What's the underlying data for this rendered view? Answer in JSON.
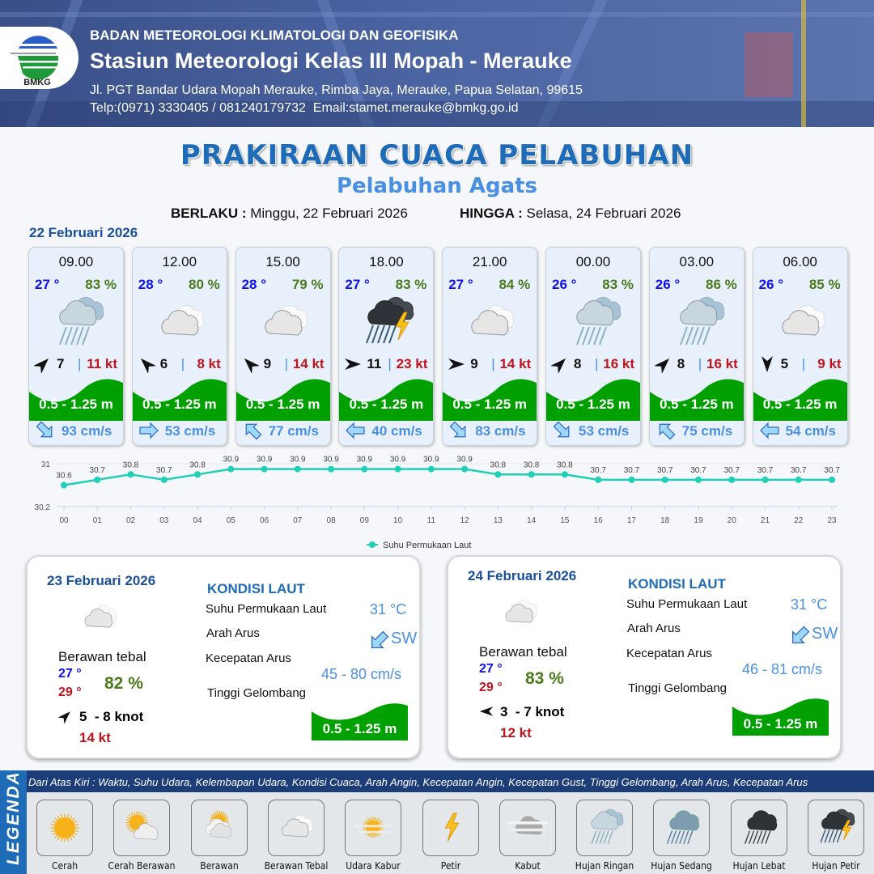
{
  "header": {
    "agency": "BADAN METEOROLOGI KLIMATOLOGI DAN GEOFISIKA",
    "station": "Stasiun Meteorologi Kelas III Mopah - Merauke",
    "address": "Jl. PGT Bandar Udara Mopah Merauke, Rimba Jaya, Merauke, Papua Selatan, 99615",
    "contact": "Telp:(0971) 3330405 / 081240179732  Email:stamet.merauke@bmkg.go.id",
    "logo_text": "BMKG"
  },
  "title": "PRAKIRAAN CUACA PELABUHAN",
  "subtitle": "Pelabuhan Agats",
  "validity": {
    "from_label": "BERLAKU :",
    "from": "Minggu, 22 Februari 2026",
    "to_label": "HINGGA :",
    "to": "Selasa, 24 Februari 2026"
  },
  "day1": {
    "date": "22 Februari 2026",
    "forecasts": [
      {
        "time": "09.00",
        "temp": "27 °",
        "hum": "83 %",
        "weather": "hujan-ringan",
        "wind_dir_deg": 45,
        "wind": "7",
        "gust": "11 kt",
        "wave": "0.5 - 1.25 m",
        "current_dir_deg": 135,
        "current": "93 cm/s"
      },
      {
        "time": "12.00",
        "temp": "28 °",
        "hum": "80 %",
        "weather": "berawan-tebal",
        "wind_dir_deg": 315,
        "wind": "6",
        "gust": "8 kt",
        "wave": "0.5 - 1.25 m",
        "current_dir_deg": 90,
        "current": "53 cm/s"
      },
      {
        "time": "15.00",
        "temp": "28 °",
        "hum": "79 %",
        "weather": "berawan-tebal",
        "wind_dir_deg": 315,
        "wind": "9",
        "gust": "14 kt",
        "wave": "0.5 - 1.25 m",
        "current_dir_deg": 315,
        "current": "77 cm/s"
      },
      {
        "time": "18.00",
        "temp": "27 °",
        "hum": "83 %",
        "weather": "hujan-petir",
        "wind_dir_deg": 90,
        "wind": "11",
        "gust": "23 kt",
        "wave": "0.5 - 1.25 m",
        "current_dir_deg": 270,
        "current": "40 cm/s"
      },
      {
        "time": "21.00",
        "temp": "27 °",
        "hum": "84 %",
        "weather": "berawan-tebal",
        "wind_dir_deg": 90,
        "wind": "9",
        "gust": "14 kt",
        "wave": "0.5 - 1.25 m",
        "current_dir_deg": 135,
        "current": "83 cm/s"
      },
      {
        "time": "00.00",
        "temp": "26 °",
        "hum": "83 %",
        "weather": "hujan-ringan",
        "wind_dir_deg": 45,
        "wind": "8",
        "gust": "16 kt",
        "wave": "0.5 - 1.25 m",
        "current_dir_deg": 135,
        "current": "53 cm/s"
      },
      {
        "time": "03.00",
        "temp": "26 °",
        "hum": "86 %",
        "weather": "hujan-ringan",
        "wind_dir_deg": 45,
        "wind": "8",
        "gust": "16 kt",
        "wave": "0.5 - 1.25 m",
        "current_dir_deg": 315,
        "current": "75 cm/s"
      },
      {
        "time": "06.00",
        "temp": "26 °",
        "hum": "85 %",
        "weather": "berawan-tebal",
        "wind_dir_deg": 180,
        "wind": "5",
        "gust": "9 kt",
        "wave": "0.5 - 1.25 m",
        "current_dir_deg": 270,
        "current": "54 cm/s"
      }
    ]
  },
  "chart_data": {
    "type": "line",
    "categories": [
      "00",
      "01",
      "02",
      "03",
      "04",
      "05",
      "06",
      "07",
      "08",
      "09",
      "10",
      "11",
      "12",
      "13",
      "14",
      "15",
      "16",
      "17",
      "18",
      "19",
      "20",
      "21",
      "22",
      "23"
    ],
    "series": [
      {
        "name": "Suhu Permukaan Laut",
        "values": [
          30.6,
          30.7,
          30.8,
          30.7,
          30.8,
          30.9,
          30.9,
          30.9,
          30.9,
          30.9,
          30.9,
          30.9,
          30.9,
          30.8,
          30.8,
          30.8,
          30.7,
          30.7,
          30.7,
          30.7,
          30.7,
          30.7,
          30.7,
          30.7
        ]
      }
    ],
    "ylim": [
      30.2,
      31
    ],
    "yticks": [
      "31",
      "30.2"
    ],
    "legend": "bottom",
    "color": "#1fcfb8"
  },
  "days": [
    {
      "date": "23 Februari 2026",
      "weather": "berawan-tebal",
      "condition": "Berawan tebal",
      "tmin": "27 °",
      "tmax": "29 °",
      "hum": "82 %",
      "wind_dir_deg": 45,
      "wind": "5  - 8 knot",
      "gust": "14 kt",
      "sea_title": "KONDISI LAUT",
      "sst_label": "Suhu Permukaan Laut",
      "sst": "31 °C",
      "cur_dir_label": "Arah Arus",
      "cur_dir": "SW",
      "cur_dir_deg": 225,
      "cur_speed_label": "Kecepatan Arus",
      "cur_speed": "45 - 80 cm/s",
      "wave_label": "Tinggi Gelombang",
      "wave": "0.5 - 1.25 m"
    },
    {
      "date": "24 Februari 2026",
      "weather": "berawan-tebal",
      "condition": "Berawan tebal",
      "tmin": "27 °",
      "tmax": "29 °",
      "hum": "83 %",
      "wind_dir_deg": 270,
      "wind": "3  - 7 knot",
      "gust": "12 kt",
      "sea_title": "KONDISI LAUT",
      "sst_label": "Suhu Permukaan Laut",
      "sst": "31 °C",
      "cur_dir_label": "Arah Arus",
      "cur_dir": "SW",
      "cur_dir_deg": 225,
      "cur_speed_label": "Kecepatan Arus",
      "cur_speed": "46 - 81 cm/s",
      "wave_label": "Tinggi Gelombang",
      "wave": "0.5 - 1.25 m"
    }
  ],
  "legend": {
    "title": "LEGENDA",
    "description": "Dari Atas Kiri : Waktu, Suhu Udara, Kelembapan Udara, Kondisi Cuaca, Arah Angin, Kecepatan Angin, Kecepatan Gust, Tinggi Gelombang, Arah Arus, Kecepatan Arus",
    "items": [
      {
        "label": "Cerah",
        "icon": "cerah"
      },
      {
        "label": "Cerah Berawan",
        "icon": "cerah-berawan"
      },
      {
        "label": "Berawan",
        "icon": "berawan"
      },
      {
        "label": "Berawan Tebal",
        "icon": "berawan-tebal"
      },
      {
        "label": "Udara Kabur",
        "icon": "udara-kabur"
      },
      {
        "label": "Petir",
        "icon": "petir"
      },
      {
        "label": "Kabut",
        "icon": "kabut"
      },
      {
        "label": "Hujan Ringan",
        "icon": "hujan-ringan"
      },
      {
        "label": "Hujan Sedang",
        "icon": "hujan-sedang"
      },
      {
        "label": "Hujan Lebat",
        "icon": "hujan-lebat"
      },
      {
        "label": "Hujan Petir",
        "icon": "hujan-petir"
      }
    ]
  },
  "colors": {
    "title": "#1e6bb8",
    "temp": "#1010f0",
    "humidity": "#4b7a1a",
    "gust": "#c0141c",
    "wave": "#00a000",
    "current": "#4a90e2"
  }
}
